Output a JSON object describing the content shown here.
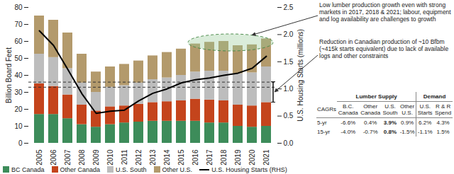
{
  "chart_data": {
    "type": "bar",
    "stacked": true,
    "categories": [
      "2005",
      "2006",
      "2007",
      "2008",
      "2009",
      "2010",
      "2011",
      "2012",
      "2013",
      "2014",
      "2015",
      "2016",
      "2017",
      "2018",
      "2019",
      "2020",
      "2021"
    ],
    "series": [
      {
        "name": "BC Canada",
        "color": "#3d8c5a",
        "values": [
          17,
          17,
          14.5,
          11,
          9.5,
          11,
          12,
          12.5,
          13,
          13,
          13,
          13,
          12,
          12,
          10,
          9.5,
          10
        ]
      },
      {
        "name": "Other Canada",
        "color": "#c4441c",
        "values": [
          18,
          16.5,
          14,
          11.5,
          9.5,
          10.5,
          10,
          10.5,
          11,
          11.5,
          12,
          13,
          13.5,
          13,
          12.5,
          12.5,
          14
        ]
      },
      {
        "name": "U.S. South",
        "color": "#bdbdbd",
        "values": [
          17.5,
          17,
          15.5,
          13,
          11,
          11.5,
          12,
          12.5,
          13.5,
          14,
          15,
          16,
          17,
          17.5,
          18.5,
          19.5,
          21
        ]
      },
      {
        "name": "Other U.S.",
        "color": "#b39a6c",
        "values": [
          22.5,
          22,
          21,
          17,
          12,
          12,
          12.5,
          13,
          14,
          15,
          15.5,
          16.5,
          17,
          17.5,
          16.5,
          16.5,
          16.5
        ]
      },
      {
        "name": "U.S. Housing Starts (RHS)",
        "type": "line",
        "axis": "y2",
        "color": "#000000",
        "values": [
          2.07,
          1.8,
          1.36,
          0.91,
          0.55,
          0.59,
          0.61,
          0.78,
          0.92,
          1.0,
          1.11,
          1.17,
          1.2,
          1.25,
          1.29,
          1.38,
          1.6
        ]
      }
    ],
    "ylabel": "Billion Board Feet",
    "y2label": "U.S. Housing Starts (millions)",
    "ylim": [
      0,
      80
    ],
    "yticks": [
      0,
      10,
      20,
      30,
      40,
      50,
      60,
      70,
      80
    ],
    "y2lim": [
      0,
      2.5
    ],
    "y2ticks": [
      {
        "value": 0,
        "label": "0.0"
      },
      0.5,
      {
        "value": 1,
        "label": "1.0"
      },
      1.5,
      {
        "value": 2,
        "label": "2.0"
      },
      2.5
    ],
    "reference_lines": [
      36,
      33
    ],
    "grid": false,
    "legend": "bottom",
    "annotations": [
      "Low lumber production growth even with strong markets in 2017, 2018 & 2021; labour, equipment and log availability are challenges to growth",
      "Reduction in Canadian production of ~10 Bfbm (~415k starts equivalent) due to lack of available logs and other constraints"
    ]
  },
  "table": {
    "header": [
      "Lumber Supply",
      "Demand"
    ],
    "columns": [
      "CAGRs",
      "B.C. Canada",
      "Other Canada",
      "U.S. South",
      "Other U.S.",
      "U.S. Starts",
      "R & R Spend"
    ],
    "rows": [
      [
        "5-yr",
        "-6.6%",
        "0.4%",
        "3.9%",
        "0.9%",
        "6.2%",
        "4.3%"
      ],
      [
        "15-yr",
        "-4.0%",
        "-0.7%",
        "0.8%",
        "-1.5%",
        "-1.1%",
        "1.5%"
      ]
    ],
    "highlight_column": "U.S. South"
  }
}
